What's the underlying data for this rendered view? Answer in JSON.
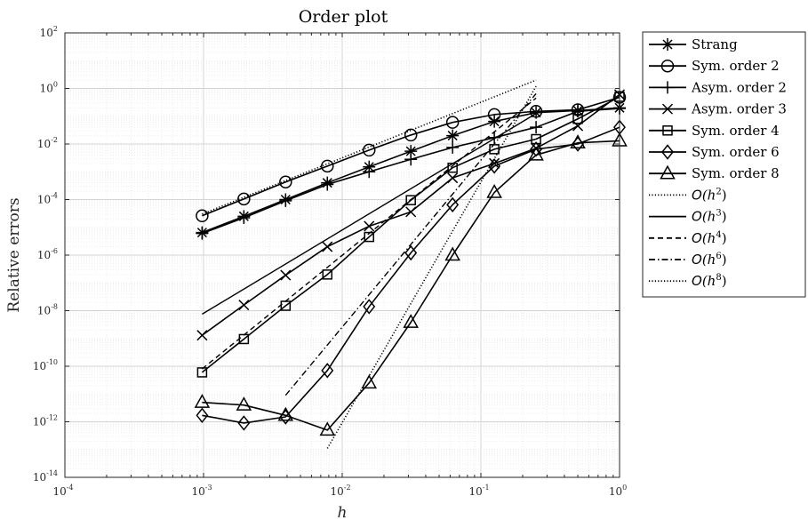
{
  "chart_data": {
    "type": "line",
    "title": "Order plot",
    "xlabel": "h",
    "ylabel": "Relative errors",
    "xscale": "log",
    "yscale": "log",
    "xlim": [
      0.0001,
      1
    ],
    "ylim": [
      1e-14,
      100
    ],
    "grid": true,
    "legend_position": "outside-right",
    "x_ticks": [
      {
        "base": "10",
        "exp": "-4",
        "value": 0.0001
      },
      {
        "base": "10",
        "exp": "-3",
        "value": 0.001
      },
      {
        "base": "10",
        "exp": "-2",
        "value": 0.01
      },
      {
        "base": "10",
        "exp": "-1",
        "value": 0.1
      },
      {
        "base": "10",
        "exp": "0",
        "value": 1
      }
    ],
    "y_ticks": [
      {
        "base": "10",
        "exp": "2",
        "value": 100
      },
      {
        "base": "10",
        "exp": "0",
        "value": 1
      },
      {
        "base": "10",
        "exp": "-2",
        "value": 0.01
      },
      {
        "base": "10",
        "exp": "-4",
        "value": 0.0001
      },
      {
        "base": "10",
        "exp": "-6",
        "value": 1e-06
      },
      {
        "base": "10",
        "exp": "-8",
        "value": 1e-08
      },
      {
        "base": "10",
        "exp": "-10",
        "value": 1e-10
      },
      {
        "base": "10",
        "exp": "-12",
        "value": 1e-12
      },
      {
        "base": "10",
        "exp": "-14",
        "value": 1e-14
      }
    ],
    "series": [
      {
        "name": "Strang",
        "marker": "asterisk",
        "line": "solid",
        "x": [
          0.0009765625,
          0.001953125,
          0.00390625,
          0.0078125,
          0.015625,
          0.03125,
          0.0625,
          0.125,
          0.25,
          0.5,
          1
        ],
        "y": [
          6.5e-06,
          2.5e-05,
          0.0001,
          0.0004,
          0.0015,
          0.0055,
          0.02,
          0.065,
          0.135,
          0.16,
          0.2
        ]
      },
      {
        "name": "Sym. order 2",
        "marker": "circle",
        "line": "solid",
        "x": [
          0.0009765625,
          0.001953125,
          0.00390625,
          0.0078125,
          0.015625,
          0.03125,
          0.0625,
          0.125,
          0.25,
          0.5,
          1
        ],
        "y": [
          2.6e-05,
          0.000105,
          0.00043,
          0.0016,
          0.006,
          0.021,
          0.06,
          0.115,
          0.15,
          0.17,
          0.48
        ]
      },
      {
        "name": "Asym. order 2",
        "marker": "plus",
        "line": "solid",
        "x": [
          0.0009765625,
          0.001953125,
          0.00390625,
          0.0078125,
          0.015625,
          0.03125,
          0.0625,
          0.125,
          0.25,
          0.5,
          1
        ],
        "y": [
          6e-06,
          2.2e-05,
          9e-05,
          0.00035,
          0.001,
          0.0028,
          0.0075,
          0.017,
          0.04,
          0.15,
          0.19
        ]
      },
      {
        "name": "Asym. order 3",
        "marker": "x",
        "line": "solid",
        "x": [
          0.0009765625,
          0.001953125,
          0.00390625,
          0.0078125,
          0.015625,
          0.03125,
          0.0625,
          0.125,
          0.25,
          0.5,
          1
        ],
        "y": [
          1.3e-09,
          1.6e-08,
          1.9e-07,
          2e-06,
          1.1e-05,
          3.6e-05,
          0.0006,
          0.002,
          0.007,
          0.045,
          0.6
        ]
      },
      {
        "name": "Sym. order 4",
        "marker": "square",
        "line": "solid",
        "x": [
          0.0009765625,
          0.001953125,
          0.00390625,
          0.0078125,
          0.015625,
          0.03125,
          0.0625,
          0.125,
          0.25,
          0.5,
          1
        ],
        "y": [
          6e-11,
          9.5e-10,
          1.5e-08,
          2e-07,
          4.5e-06,
          9.5e-05,
          0.0014,
          0.0065,
          0.015,
          0.08,
          0.5
        ]
      },
      {
        "name": "Sym. order 6",
        "marker": "diamond",
        "line": "solid",
        "x": [
          0.0009765625,
          0.001953125,
          0.00390625,
          0.0078125,
          0.015625,
          0.03125,
          0.0625,
          0.125,
          0.25,
          0.5,
          1
        ],
        "y": [
          1.7e-12,
          9e-13,
          1.5e-12,
          7e-11,
          1.4e-08,
          1.2e-06,
          6.5e-05,
          0.0016,
          0.0065,
          0.01,
          0.04
        ]
      },
      {
        "name": "Sym. order 8",
        "marker": "triangle",
        "line": "solid",
        "x": [
          0.0009765625,
          0.001953125,
          0.00390625,
          0.0078125,
          0.015625,
          0.03125,
          0.0625,
          0.125,
          0.25,
          0.5,
          1
        ],
        "y": [
          5e-12,
          4e-12,
          1.7e-12,
          5e-13,
          2.5e-11,
          3.8e-09,
          1e-06,
          0.00018,
          0.004,
          0.011,
          0.013
        ]
      },
      {
        "name": "O(h^2)",
        "marker": "none",
        "line": "dotted",
        "x": [
          0.0009765625,
          0.25
        ],
        "y": [
          3e-05,
          2.0
        ]
      },
      {
        "name": "O(h^3)",
        "marker": "none",
        "line": "solid",
        "x": [
          0.0009765625,
          0.25
        ],
        "y": [
          7.5e-09,
          0.125
        ]
      },
      {
        "name": "O(h^4)",
        "marker": "none",
        "line": "dashed",
        "x": [
          0.0009765625,
          0.25
        ],
        "y": [
          8e-11,
          0.45
        ]
      },
      {
        "name": "O(h^6)",
        "marker": "none",
        "line": "dashdot",
        "x": [
          0.00390625,
          0.25
        ],
        "y": [
          9e-12,
          0.65
        ]
      },
      {
        "name": "O(h^8)",
        "marker": "none",
        "line": "dotted",
        "x": [
          0.0078125,
          0.25
        ],
        "y": [
          1.1e-13,
          1.2
        ]
      }
    ],
    "legend_entries": [
      {
        "label": "Strang",
        "marker": "asterisk",
        "line": "solid",
        "math": false
      },
      {
        "label": "Sym. order 2",
        "marker": "circle",
        "line": "solid",
        "math": false
      },
      {
        "label": "Asym. order 2",
        "marker": "plus",
        "line": "solid",
        "math": false
      },
      {
        "label": "Asym. order 3",
        "marker": "x",
        "line": "solid",
        "math": false
      },
      {
        "label": "Sym. order 4",
        "marker": "square",
        "line": "solid",
        "math": false
      },
      {
        "label": "Sym. order 6",
        "marker": "diamond",
        "line": "solid",
        "math": false
      },
      {
        "label": "Sym. order 8",
        "marker": "triangle",
        "line": "solid",
        "math": false
      },
      {
        "label": "O",
        "sub": "(h",
        "exp": "2",
        "close": ")",
        "marker": "none",
        "line": "dotted",
        "math": true
      },
      {
        "label": "O",
        "sub": "(h",
        "exp": "3",
        "close": ")",
        "marker": "none",
        "line": "solid",
        "math": true
      },
      {
        "label": "O",
        "sub": "(h",
        "exp": "4",
        "close": ")",
        "marker": "none",
        "line": "dashed",
        "math": true
      },
      {
        "label": "O",
        "sub": "(h",
        "exp": "6",
        "close": ")",
        "marker": "none",
        "line": "dashdot",
        "math": true
      },
      {
        "label": "O",
        "sub": "(h",
        "exp": "8",
        "close": ")",
        "marker": "none",
        "line": "dotted",
        "math": true
      }
    ]
  }
}
